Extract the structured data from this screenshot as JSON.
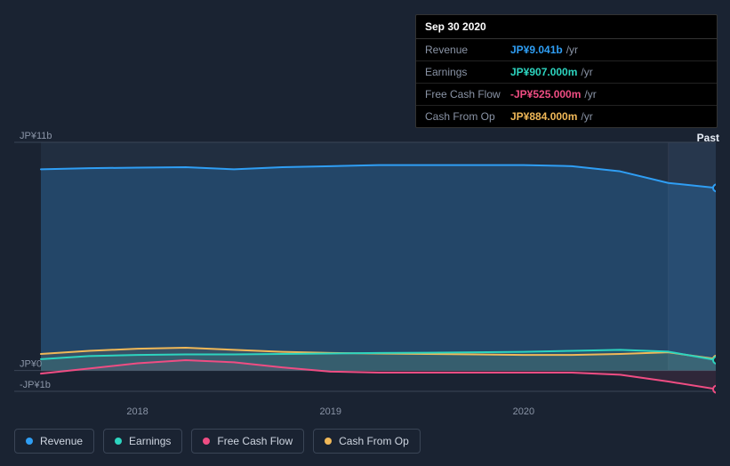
{
  "tooltip": {
    "date": "Sep 30 2020",
    "rows": [
      {
        "label": "Revenue",
        "value": "JP¥9.041b",
        "unit": "/yr",
        "color": "#2f9ef4"
      },
      {
        "label": "Earnings",
        "value": "JP¥907.000m",
        "unit": "/yr",
        "color": "#2dd4bf"
      },
      {
        "label": "Free Cash Flow",
        "value": "-JP¥525.000m",
        "unit": "/yr",
        "color": "#ef4d83"
      },
      {
        "label": "Cash From Op",
        "value": "JP¥884.000m",
        "unit": "/yr",
        "color": "#f0b858"
      }
    ]
  },
  "chart": {
    "type": "area-line",
    "past_label": "Past",
    "background_color": "#1a2332",
    "plot_band_color": "#212e40",
    "plot_band_highlight_color": "#27374d",
    "grid_line_color": "#3a4556",
    "marker_x_color": "#1a2332",
    "y_axis": {
      "min": -1,
      "max": 11,
      "ticks": [
        {
          "value": 11,
          "label": "JP¥11b"
        },
        {
          "value": 0,
          "label": "JP¥0"
        },
        {
          "value": -1,
          "label": "-JP¥1b"
        }
      ],
      "label_color": "#8a94a6",
      "label_fontsize": 11
    },
    "x_axis": {
      "min": 2017.5,
      "max": 2021.0,
      "ticks": [
        {
          "value": 2018,
          "label": "2018"
        },
        {
          "value": 2019,
          "label": "2019"
        },
        {
          "value": 2020,
          "label": "2020"
        }
      ],
      "label_color": "#8a94a6",
      "label_fontsize": 11
    },
    "marker_x": 2020.75,
    "series": [
      {
        "name": "Revenue",
        "color": "#2f9ef4",
        "fill": "rgba(47,158,244,0.22)",
        "line_width": 2,
        "data": [
          [
            2017.5,
            9.7
          ],
          [
            2017.75,
            9.75
          ],
          [
            2018,
            9.78
          ],
          [
            2018.25,
            9.8
          ],
          [
            2018.5,
            9.7
          ],
          [
            2018.75,
            9.8
          ],
          [
            2019,
            9.85
          ],
          [
            2019.25,
            9.9
          ],
          [
            2019.5,
            9.9
          ],
          [
            2019.75,
            9.9
          ],
          [
            2020,
            9.9
          ],
          [
            2020.25,
            9.85
          ],
          [
            2020.5,
            9.6
          ],
          [
            2020.75,
            9.04
          ],
          [
            2021,
            8.8
          ]
        ]
      },
      {
        "name": "Cash From Op",
        "color": "#f0b858",
        "fill": "rgba(240,184,88,0.10)",
        "line_width": 2,
        "data": [
          [
            2017.5,
            0.8
          ],
          [
            2017.75,
            0.95
          ],
          [
            2018,
            1.05
          ],
          [
            2018.25,
            1.1
          ],
          [
            2018.5,
            1.0
          ],
          [
            2018.75,
            0.9
          ],
          [
            2019,
            0.85
          ],
          [
            2019.25,
            0.82
          ],
          [
            2019.5,
            0.8
          ],
          [
            2019.75,
            0.78
          ],
          [
            2020,
            0.75
          ],
          [
            2020.25,
            0.75
          ],
          [
            2020.5,
            0.8
          ],
          [
            2020.75,
            0.88
          ],
          [
            2021,
            0.55
          ]
        ]
      },
      {
        "name": "Earnings",
        "color": "#2dd4bf",
        "fill": "rgba(45,212,191,0.10)",
        "line_width": 2,
        "data": [
          [
            2017.5,
            0.55
          ],
          [
            2017.75,
            0.7
          ],
          [
            2018,
            0.75
          ],
          [
            2018.25,
            0.78
          ],
          [
            2018.5,
            0.78
          ],
          [
            2018.75,
            0.8
          ],
          [
            2019,
            0.82
          ],
          [
            2019.25,
            0.85
          ],
          [
            2019.5,
            0.86
          ],
          [
            2019.75,
            0.88
          ],
          [
            2020,
            0.9
          ],
          [
            2020.25,
            0.95
          ],
          [
            2020.5,
            1.0
          ],
          [
            2020.75,
            0.91
          ],
          [
            2021,
            0.5
          ]
        ]
      },
      {
        "name": "Free Cash Flow",
        "color": "#ef4d83",
        "fill": "rgba(239,77,131,0.10)",
        "line_width": 2,
        "data": [
          [
            2017.5,
            -0.15
          ],
          [
            2017.75,
            0.1
          ],
          [
            2018,
            0.35
          ],
          [
            2018.25,
            0.5
          ],
          [
            2018.5,
            0.4
          ],
          [
            2018.75,
            0.15
          ],
          [
            2019,
            -0.05
          ],
          [
            2019.25,
            -0.1
          ],
          [
            2019.5,
            -0.1
          ],
          [
            2019.75,
            -0.1
          ],
          [
            2020,
            -0.1
          ],
          [
            2020.25,
            -0.1
          ],
          [
            2020.5,
            -0.2
          ],
          [
            2020.75,
            -0.53
          ],
          [
            2021,
            -0.9
          ]
        ]
      }
    ],
    "legend": {
      "items": [
        {
          "label": "Revenue",
          "color": "#2f9ef4"
        },
        {
          "label": "Earnings",
          "color": "#2dd4bf"
        },
        {
          "label": "Free Cash Flow",
          "color": "#ef4d83"
        },
        {
          "label": "Cash From Op",
          "color": "#f0b858"
        }
      ],
      "border_color": "#3a4556",
      "text_color": "#cfd6e1",
      "fontsize": 12
    }
  }
}
